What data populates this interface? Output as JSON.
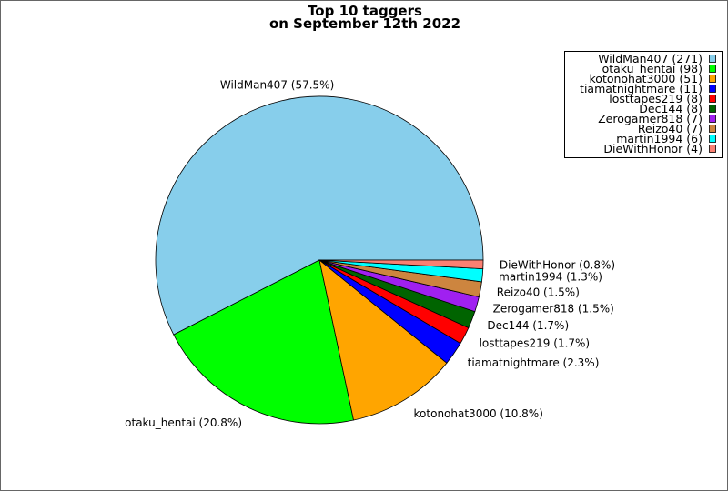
{
  "chart_data": {
    "type": "pie",
    "title": [
      "Top 10 taggers",
      "on September 12th 2022"
    ],
    "categories": [
      "WildMan407",
      "otaku_hentai",
      "kotonohat3000",
      "tiamatnightmare",
      "losttapes219",
      "Dec144",
      "Zerogamer818",
      "Reizo40",
      "martin1994",
      "DieWithHonor"
    ],
    "values": [
      271,
      98,
      51,
      11,
      8,
      8,
      7,
      7,
      6,
      4
    ],
    "percent_labels": [
      "57.5%",
      "20.8%",
      "10.8%",
      "2.3%",
      "1.7%",
      "1.7%",
      "1.5%",
      "1.5%",
      "1.3%",
      "0.8%"
    ],
    "colors": [
      "#87ceeb",
      "#00ff00",
      "#ffa500",
      "#0000ff",
      "#ff0000",
      "#006400",
      "#a020f0",
      "#cd853f",
      "#00ffff",
      "#fa8072"
    ],
    "legend_position": "top-right",
    "start_angle_deg": 0,
    "direction": "counterclockwise"
  }
}
